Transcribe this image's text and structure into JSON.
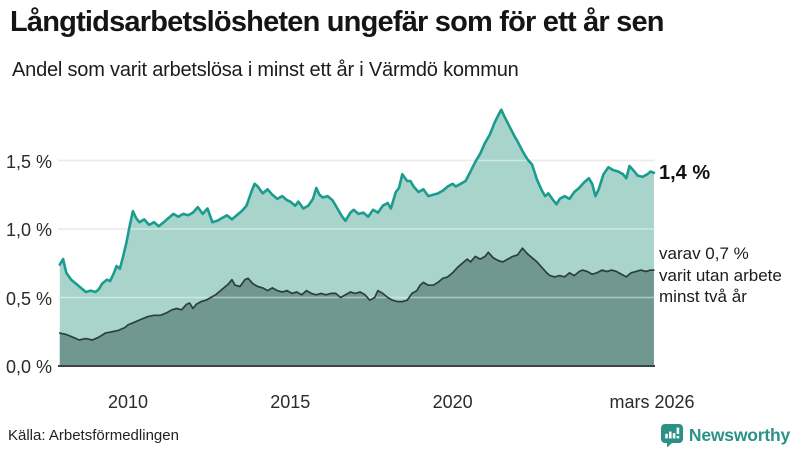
{
  "header": {
    "title": "Långtidsarbetslösheten ungefär som för ett år sen",
    "subtitle": "Andel som varit arbetslösa i minst ett år i Värmdö kommun"
  },
  "chart_data": {
    "type": "area",
    "title": "Långtidsarbetslösheten ungefär som för ett år sen",
    "subtitle": "Andel som varit arbetslösa i minst ett år i Värmdö kommun",
    "unit": "%",
    "x_range": [
      2007.9,
      2026.25
    ],
    "y_range": [
      0,
      1.95
    ],
    "grid": "horizontal",
    "y_ticks": [
      {
        "label": "0,0 %",
        "value": 0.0
      },
      {
        "label": "0,5 %",
        "value": 0.5
      },
      {
        "label": "1,0 %",
        "value": 1.0
      },
      {
        "label": "1,5 %",
        "value": 1.5
      }
    ],
    "x_ticks": [
      {
        "label": "2010",
        "year": 2010
      },
      {
        "label": "2015",
        "year": 2015
      },
      {
        "label": "2020",
        "year": 2020
      },
      {
        "label": "mars 2026",
        "year": 2026.17
      }
    ],
    "annotations": {
      "latest_total": "1,4 %",
      "subseries_line1": "varav 0,7 %",
      "subseries_line2": "varit utan arbete",
      "subseries_line3": "minst två år"
    },
    "series": [
      {
        "name": "Arbetslösa minst ett år",
        "latest_value": 1.4,
        "line_color": "#1a9c8e",
        "fill_color": "#a8d4cc",
        "points": [
          [
            2007.9,
            0.74
          ],
          [
            2008.0,
            0.78
          ],
          [
            2008.1,
            0.68
          ],
          [
            2008.25,
            0.63
          ],
          [
            2008.4,
            0.6
          ],
          [
            2008.55,
            0.57
          ],
          [
            2008.7,
            0.54
          ],
          [
            2008.85,
            0.55
          ],
          [
            2009.0,
            0.54
          ],
          [
            2009.1,
            0.56
          ],
          [
            2009.2,
            0.6
          ],
          [
            2009.35,
            0.63
          ],
          [
            2009.45,
            0.62
          ],
          [
            2009.55,
            0.67
          ],
          [
            2009.65,
            0.73
          ],
          [
            2009.75,
            0.71
          ],
          [
            2009.85,
            0.8
          ],
          [
            2009.95,
            0.9
          ],
          [
            2010.05,
            1.02
          ],
          [
            2010.15,
            1.13
          ],
          [
            2010.25,
            1.08
          ],
          [
            2010.35,
            1.05
          ],
          [
            2010.5,
            1.07
          ],
          [
            2010.65,
            1.03
          ],
          [
            2010.8,
            1.05
          ],
          [
            2010.95,
            1.02
          ],
          [
            2011.1,
            1.05
          ],
          [
            2011.25,
            1.08
          ],
          [
            2011.4,
            1.11
          ],
          [
            2011.55,
            1.09
          ],
          [
            2011.7,
            1.11
          ],
          [
            2011.85,
            1.1
          ],
          [
            2012.0,
            1.12
          ],
          [
            2012.15,
            1.16
          ],
          [
            2012.3,
            1.11
          ],
          [
            2012.45,
            1.15
          ],
          [
            2012.6,
            1.05
          ],
          [
            2012.75,
            1.06
          ],
          [
            2012.9,
            1.08
          ],
          [
            2013.05,
            1.1
          ],
          [
            2013.2,
            1.07
          ],
          [
            2013.35,
            1.1
          ],
          [
            2013.5,
            1.13
          ],
          [
            2013.65,
            1.17
          ],
          [
            2013.8,
            1.27
          ],
          [
            2013.9,
            1.33
          ],
          [
            2014.0,
            1.31
          ],
          [
            2014.15,
            1.26
          ],
          [
            2014.3,
            1.29
          ],
          [
            2014.45,
            1.25
          ],
          [
            2014.6,
            1.22
          ],
          [
            2014.75,
            1.24
          ],
          [
            2014.9,
            1.21
          ],
          [
            2015.0,
            1.2
          ],
          [
            2015.15,
            1.17
          ],
          [
            2015.25,
            1.2
          ],
          [
            2015.4,
            1.15
          ],
          [
            2015.55,
            1.17
          ],
          [
            2015.7,
            1.22
          ],
          [
            2015.8,
            1.3
          ],
          [
            2015.9,
            1.25
          ],
          [
            2016.0,
            1.23
          ],
          [
            2016.15,
            1.24
          ],
          [
            2016.3,
            1.21
          ],
          [
            2016.45,
            1.15
          ],
          [
            2016.6,
            1.09
          ],
          [
            2016.7,
            1.06
          ],
          [
            2016.85,
            1.12
          ],
          [
            2016.95,
            1.14
          ],
          [
            2017.1,
            1.11
          ],
          [
            2017.25,
            1.12
          ],
          [
            2017.4,
            1.09
          ],
          [
            2017.55,
            1.14
          ],
          [
            2017.7,
            1.12
          ],
          [
            2017.85,
            1.17
          ],
          [
            2018.0,
            1.19
          ],
          [
            2018.1,
            1.15
          ],
          [
            2018.25,
            1.27
          ],
          [
            2018.35,
            1.3
          ],
          [
            2018.45,
            1.4
          ],
          [
            2018.6,
            1.35
          ],
          [
            2018.7,
            1.35
          ],
          [
            2018.8,
            1.31
          ],
          [
            2018.95,
            1.27
          ],
          [
            2019.1,
            1.29
          ],
          [
            2019.25,
            1.24
          ],
          [
            2019.4,
            1.25
          ],
          [
            2019.55,
            1.26
          ],
          [
            2019.7,
            1.28
          ],
          [
            2019.85,
            1.31
          ],
          [
            2020.0,
            1.33
          ],
          [
            2020.1,
            1.31
          ],
          [
            2020.25,
            1.33
          ],
          [
            2020.4,
            1.35
          ],
          [
            2020.55,
            1.42
          ],
          [
            2020.7,
            1.49
          ],
          [
            2020.85,
            1.55
          ],
          [
            2021.0,
            1.63
          ],
          [
            2021.15,
            1.69
          ],
          [
            2021.3,
            1.78
          ],
          [
            2021.45,
            1.85
          ],
          [
            2021.5,
            1.87
          ],
          [
            2021.6,
            1.82
          ],
          [
            2021.75,
            1.75
          ],
          [
            2021.9,
            1.68
          ],
          [
            2022.0,
            1.64
          ],
          [
            2022.15,
            1.57
          ],
          [
            2022.3,
            1.51
          ],
          [
            2022.45,
            1.47
          ],
          [
            2022.6,
            1.36
          ],
          [
            2022.75,
            1.28
          ],
          [
            2022.85,
            1.24
          ],
          [
            2022.95,
            1.26
          ],
          [
            2023.1,
            1.21
          ],
          [
            2023.2,
            1.18
          ],
          [
            2023.3,
            1.22
          ],
          [
            2023.45,
            1.24
          ],
          [
            2023.6,
            1.22
          ],
          [
            2023.75,
            1.27
          ],
          [
            2023.9,
            1.3
          ],
          [
            2024.05,
            1.34
          ],
          [
            2024.2,
            1.37
          ],
          [
            2024.3,
            1.33
          ],
          [
            2024.4,
            1.24
          ],
          [
            2024.5,
            1.29
          ],
          [
            2024.65,
            1.4
          ],
          [
            2024.8,
            1.45
          ],
          [
            2024.95,
            1.43
          ],
          [
            2025.1,
            1.42
          ],
          [
            2025.25,
            1.4
          ],
          [
            2025.35,
            1.37
          ],
          [
            2025.45,
            1.46
          ],
          [
            2025.6,
            1.42
          ],
          [
            2025.7,
            1.39
          ],
          [
            2025.85,
            1.38
          ],
          [
            2026.0,
            1.4
          ],
          [
            2026.1,
            1.42
          ],
          [
            2026.2,
            1.41
          ]
        ]
      },
      {
        "name": "Varav utan arbete minst två år",
        "latest_value": 0.7,
        "line_color": "#2d3f3b",
        "fill_color": "#719890",
        "points": [
          [
            2007.9,
            0.24
          ],
          [
            2008.1,
            0.23
          ],
          [
            2008.3,
            0.21
          ],
          [
            2008.5,
            0.19
          ],
          [
            2008.7,
            0.2
          ],
          [
            2008.9,
            0.19
          ],
          [
            2009.1,
            0.21
          ],
          [
            2009.3,
            0.24
          ],
          [
            2009.5,
            0.25
          ],
          [
            2009.7,
            0.26
          ],
          [
            2009.9,
            0.28
          ],
          [
            2010.0,
            0.3
          ],
          [
            2010.2,
            0.32
          ],
          [
            2010.4,
            0.34
          ],
          [
            2010.6,
            0.36
          ],
          [
            2010.8,
            0.37
          ],
          [
            2011.0,
            0.37
          ],
          [
            2011.2,
            0.39
          ],
          [
            2011.35,
            0.41
          ],
          [
            2011.5,
            0.42
          ],
          [
            2011.65,
            0.41
          ],
          [
            2011.8,
            0.45
          ],
          [
            2011.9,
            0.46
          ],
          [
            2012.0,
            0.42
          ],
          [
            2012.1,
            0.45
          ],
          [
            2012.25,
            0.47
          ],
          [
            2012.4,
            0.48
          ],
          [
            2012.55,
            0.5
          ],
          [
            2012.7,
            0.52
          ],
          [
            2012.85,
            0.55
          ],
          [
            2013.0,
            0.58
          ],
          [
            2013.1,
            0.6
          ],
          [
            2013.2,
            0.63
          ],
          [
            2013.3,
            0.59
          ],
          [
            2013.45,
            0.58
          ],
          [
            2013.6,
            0.63
          ],
          [
            2013.7,
            0.64
          ],
          [
            2013.85,
            0.6
          ],
          [
            2014.0,
            0.58
          ],
          [
            2014.15,
            0.57
          ],
          [
            2014.3,
            0.55
          ],
          [
            2014.45,
            0.57
          ],
          [
            2014.6,
            0.55
          ],
          [
            2014.75,
            0.54
          ],
          [
            2014.9,
            0.55
          ],
          [
            2015.05,
            0.53
          ],
          [
            2015.2,
            0.54
          ],
          [
            2015.35,
            0.52
          ],
          [
            2015.5,
            0.55
          ],
          [
            2015.65,
            0.53
          ],
          [
            2015.8,
            0.52
          ],
          [
            2015.95,
            0.53
          ],
          [
            2016.1,
            0.52
          ],
          [
            2016.25,
            0.53
          ],
          [
            2016.4,
            0.53
          ],
          [
            2016.55,
            0.5
          ],
          [
            2016.7,
            0.52
          ],
          [
            2016.85,
            0.54
          ],
          [
            2017.0,
            0.53
          ],
          [
            2017.15,
            0.54
          ],
          [
            2017.3,
            0.52
          ],
          [
            2017.45,
            0.48
          ],
          [
            2017.6,
            0.5
          ],
          [
            2017.7,
            0.55
          ],
          [
            2017.85,
            0.53
          ],
          [
            2018.0,
            0.5
          ],
          [
            2018.15,
            0.48
          ],
          [
            2018.3,
            0.47
          ],
          [
            2018.45,
            0.47
          ],
          [
            2018.6,
            0.48
          ],
          [
            2018.75,
            0.53
          ],
          [
            2018.9,
            0.55
          ],
          [
            2019.0,
            0.59
          ],
          [
            2019.1,
            0.61
          ],
          [
            2019.25,
            0.59
          ],
          [
            2019.4,
            0.59
          ],
          [
            2019.55,
            0.61
          ],
          [
            2019.7,
            0.64
          ],
          [
            2019.85,
            0.65
          ],
          [
            2020.0,
            0.68
          ],
          [
            2020.15,
            0.72
          ],
          [
            2020.3,
            0.75
          ],
          [
            2020.45,
            0.78
          ],
          [
            2020.55,
            0.76
          ],
          [
            2020.7,
            0.8
          ],
          [
            2020.85,
            0.78
          ],
          [
            2021.0,
            0.8
          ],
          [
            2021.1,
            0.83
          ],
          [
            2021.25,
            0.79
          ],
          [
            2021.4,
            0.77
          ],
          [
            2021.55,
            0.76
          ],
          [
            2021.7,
            0.78
          ],
          [
            2021.85,
            0.8
          ],
          [
            2022.0,
            0.81
          ],
          [
            2022.15,
            0.86
          ],
          [
            2022.3,
            0.82
          ],
          [
            2022.45,
            0.79
          ],
          [
            2022.6,
            0.76
          ],
          [
            2022.75,
            0.72
          ],
          [
            2022.9,
            0.68
          ],
          [
            2023.0,
            0.66
          ],
          [
            2023.15,
            0.65
          ],
          [
            2023.3,
            0.66
          ],
          [
            2023.45,
            0.65
          ],
          [
            2023.6,
            0.68
          ],
          [
            2023.75,
            0.66
          ],
          [
            2023.9,
            0.69
          ],
          [
            2024.0,
            0.7
          ],
          [
            2024.15,
            0.69
          ],
          [
            2024.3,
            0.67
          ],
          [
            2024.45,
            0.68
          ],
          [
            2024.6,
            0.7
          ],
          [
            2024.75,
            0.69
          ],
          [
            2024.9,
            0.7
          ],
          [
            2025.05,
            0.69
          ],
          [
            2025.2,
            0.67
          ],
          [
            2025.35,
            0.65
          ],
          [
            2025.5,
            0.68
          ],
          [
            2025.65,
            0.69
          ],
          [
            2025.8,
            0.7
          ],
          [
            2025.95,
            0.69
          ],
          [
            2026.1,
            0.7
          ],
          [
            2026.2,
            0.7
          ]
        ]
      }
    ],
    "colors": {
      "grid": "#dcdcdc",
      "baseline": "#3d4345",
      "accent_teal": "#1a9c8e",
      "brand_teal": "#2b9187"
    }
  },
  "footer": {
    "source": "Källa: Arbetsförmedlingen",
    "brand": "Newsworthy"
  }
}
